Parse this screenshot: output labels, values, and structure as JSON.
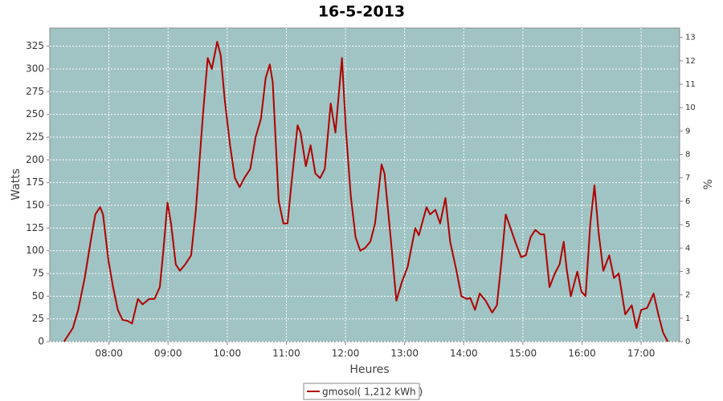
{
  "chart_data": {
    "type": "line",
    "title": "16-5-2013",
    "x_label": "Heures",
    "y_label": "Watts",
    "y2_label": "%",
    "x": [
      7.24,
      7.39,
      7.48,
      7.59,
      7.69,
      7.77,
      7.85,
      7.9,
      7.99,
      8.07,
      8.15,
      8.23,
      8.31,
      8.39,
      8.49,
      8.57,
      8.68,
      8.77,
      8.86,
      8.92,
      8.99,
      9.05,
      9.13,
      9.2,
      9.29,
      9.39,
      9.47,
      9.59,
      9.67,
      9.74,
      9.83,
      9.89,
      9.96,
      10.05,
      10.13,
      10.21,
      10.29,
      10.39,
      10.48,
      10.57,
      10.65,
      10.72,
      10.77,
      10.82,
      10.87,
      10.95,
      11.02,
      11.08,
      11.19,
      11.24,
      11.33,
      11.41,
      11.49,
      11.57,
      11.65,
      11.75,
      11.83,
      11.94,
      12.01,
      12.09,
      12.17,
      12.25,
      12.33,
      12.42,
      12.5,
      12.61,
      12.66,
      12.77,
      12.86,
      12.95,
      13.05,
      13.18,
      13.24,
      13.37,
      13.43,
      13.52,
      13.6,
      13.69,
      13.77,
      13.87,
      13.96,
      14.05,
      14.11,
      14.19,
      14.27,
      14.37,
      14.48,
      14.56,
      14.64,
      14.71,
      14.79,
      14.87,
      14.97,
      15.05,
      15.13,
      15.21,
      15.3,
      15.36,
      15.45,
      15.54,
      15.62,
      15.69,
      15.74,
      15.81,
      15.92,
      15.99,
      16.06,
      16.14,
      16.21,
      16.28,
      16.36,
      16.46,
      16.54,
      16.62,
      16.73,
      16.84,
      16.92,
      17.0,
      17.1,
      17.21,
      17.29,
      17.37,
      17.45
    ],
    "series": [
      {
        "name": "gmosol( 1,212 kWh )",
        "color": "#b00000",
        "values": [
          0,
          15,
          35,
          70,
          110,
          140,
          148,
          140,
          90,
          60,
          35,
          24,
          23,
          20,
          47,
          41,
          47,
          47,
          60,
          100,
          153,
          130,
          85,
          78,
          85,
          95,
          145,
          250,
          312,
          300,
          330,
          315,
          265,
          215,
          180,
          170,
          180,
          190,
          225,
          245,
          290,
          305,
          285,
          220,
          155,
          130,
          130,
          170,
          238,
          230,
          193,
          216,
          185,
          180,
          190,
          262,
          230,
          312,
          230,
          160,
          115,
          100,
          103,
          110,
          130,
          195,
          185,
          110,
          45,
          65,
          82,
          125,
          117,
          148,
          140,
          145,
          130,
          158,
          110,
          80,
          50,
          47,
          48,
          35,
          53,
          45,
          32,
          40,
          90,
          140,
          125,
          110,
          93,
          95,
          115,
          123,
          118,
          118,
          60,
          75,
          85,
          110,
          80,
          50,
          77,
          55,
          50,
          130,
          172,
          120,
          78,
          95,
          70,
          75,
          30,
          40,
          15,
          35,
          37,
          53,
          30,
          10,
          0
        ]
      }
    ],
    "xlim": [
      7.0,
      17.65
    ],
    "xticks": [
      {
        "value": 8,
        "label": "08:00"
      },
      {
        "value": 9,
        "label": "09:00"
      },
      {
        "value": 10,
        "label": "10:00"
      },
      {
        "value": 11,
        "label": "11:00"
      },
      {
        "value": 12,
        "label": "12:00"
      },
      {
        "value": 13,
        "label": "13:00"
      },
      {
        "value": 14,
        "label": "14:00"
      },
      {
        "value": 15,
        "label": "15:00"
      },
      {
        "value": 16,
        "label": "16:00"
      },
      {
        "value": 17,
        "label": "17:00"
      }
    ],
    "ylim": [
      0,
      345
    ],
    "yticks": [
      0,
      25,
      50,
      75,
      100,
      125,
      150,
      175,
      200,
      225,
      250,
      275,
      300,
      325
    ],
    "y2lim": [
      0,
      13.4
    ],
    "y2ticks": [
      0,
      1,
      2,
      3,
      4,
      5,
      6,
      7,
      8,
      9,
      10,
      11,
      12,
      13
    ],
    "grid": true,
    "background": "#a0c3c3",
    "legend_position": "bottom"
  }
}
